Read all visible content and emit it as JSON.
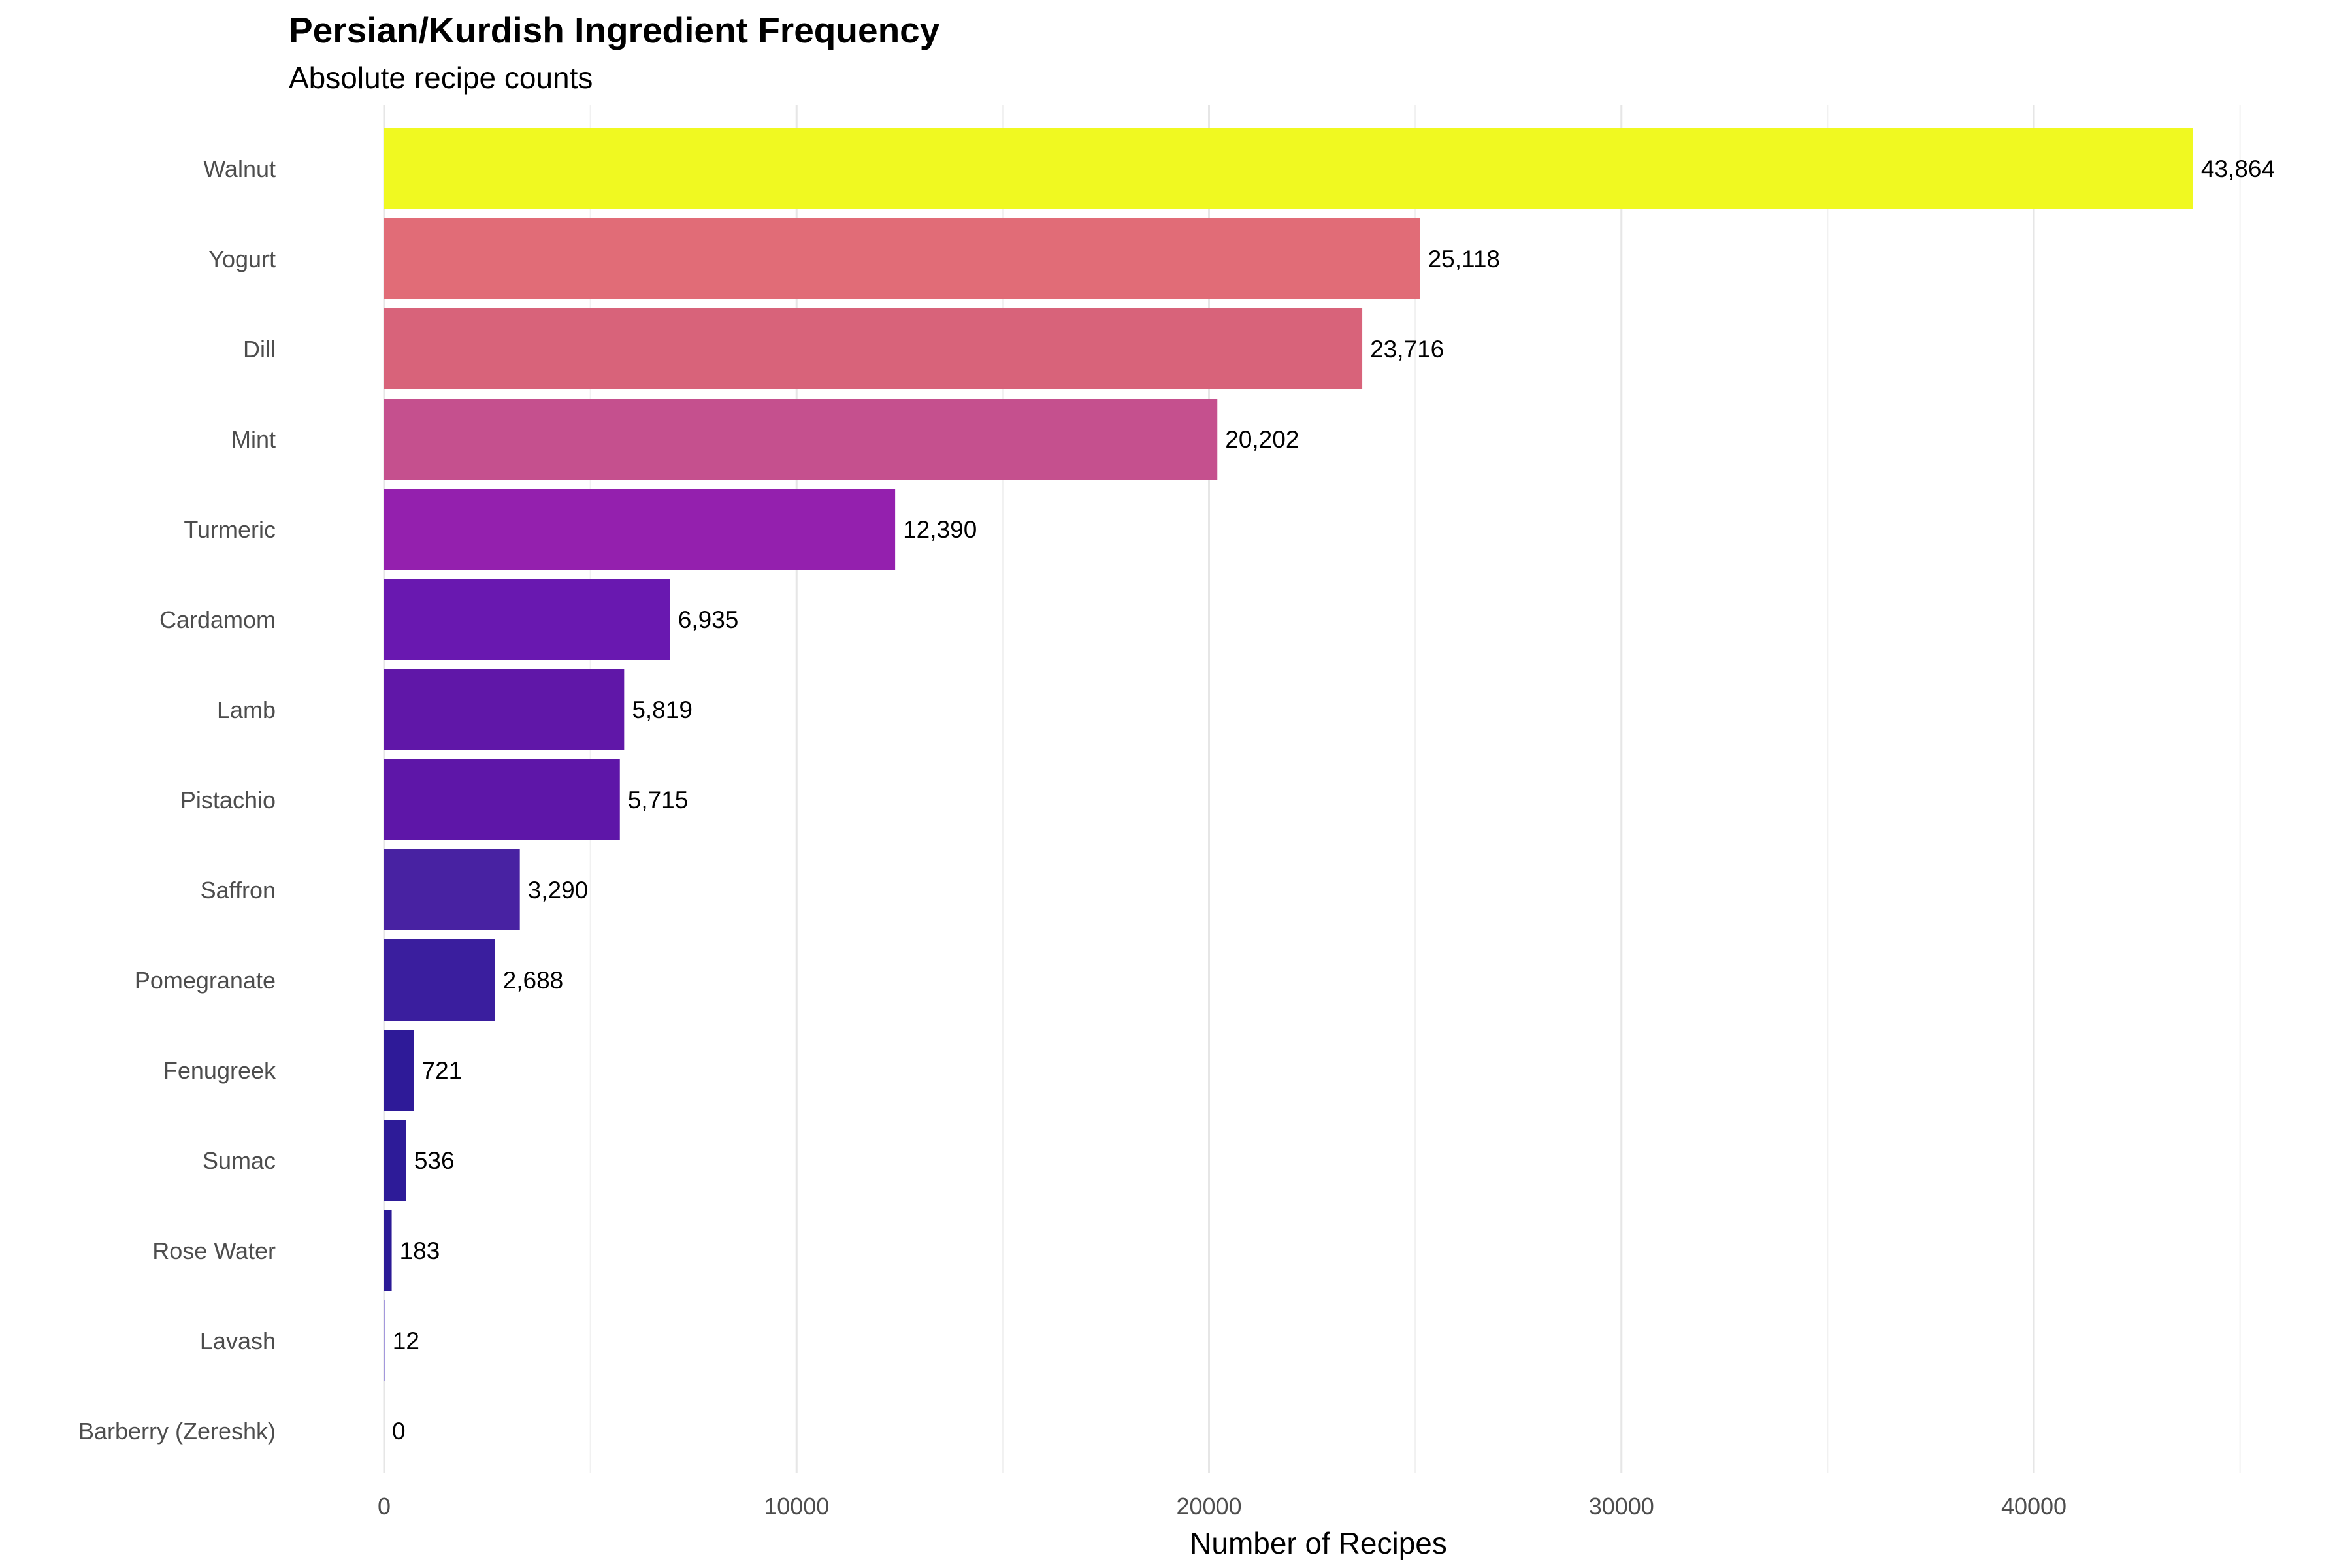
{
  "title": "Persian/Kurdish Ingredient Frequency",
  "subtitle": "Absolute recipe counts",
  "chart_data": {
    "type": "bar",
    "orientation": "horizontal",
    "title": "Persian/Kurdish Ingredient Frequency",
    "subtitle": "Absolute recipe counts",
    "xlabel": "Number of Recipes",
    "ylabel": "",
    "xlim": [
      0,
      45000
    ],
    "grid": true,
    "legend": "none",
    "x_ticks": [
      0,
      10000,
      20000,
      30000,
      40000
    ],
    "x_tick_labels": [
      "0",
      "10000",
      "20000",
      "30000",
      "40000"
    ],
    "categories": [
      "Walnut",
      "Yogurt",
      "Dill",
      "Mint",
      "Turmeric",
      "Cardamom",
      "Lamb",
      "Pistachio",
      "Saffron",
      "Pomegranate",
      "Fenugreek",
      "Sumac",
      "Rose Water",
      "Lavash",
      "Barberry (Zereshk)"
    ],
    "values": [
      43864,
      25118,
      23716,
      20202,
      12390,
      6935,
      5819,
      5715,
      3290,
      2688,
      721,
      536,
      183,
      12,
      0
    ],
    "value_labels": [
      "43,864",
      "25,118",
      "23,716",
      "20,202",
      "12,390",
      "6,935",
      "5,819",
      "5,715",
      "3,290",
      "2,688",
      "721",
      "536",
      "183",
      "12",
      "0"
    ],
    "colors": [
      "#F0F921",
      "#E16C77",
      "#D8637A",
      "#C5508E",
      "#9420AE",
      "#6918B0",
      "#6017A8",
      "#5E16A8",
      "#4822A2",
      "#3A1E9E",
      "#2E1A98",
      "#2D1B98",
      "#2B1A96",
      "#8E80D8",
      "#2A1A95"
    ]
  }
}
